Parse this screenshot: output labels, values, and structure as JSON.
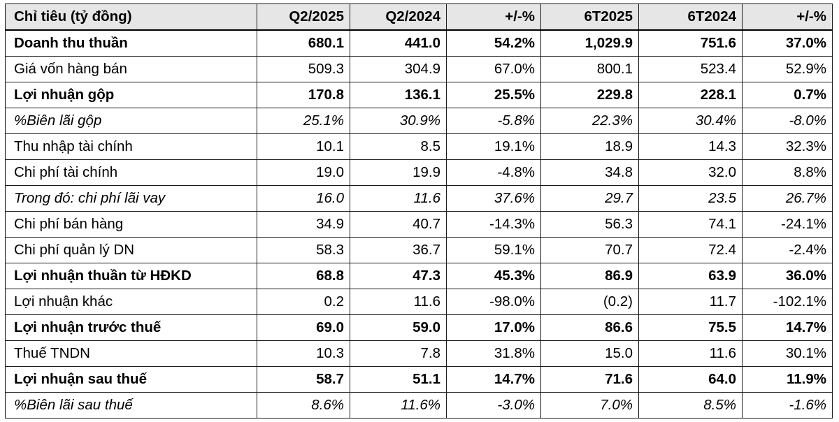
{
  "table": {
    "headers": [
      "Chỉ tiêu (tỷ đồng)",
      "Q2/2025",
      "Q2/2024",
      "+/-%",
      "6T2025",
      "6T2024",
      "+/-%"
    ],
    "rows": [
      {
        "style": "bold",
        "cells": [
          "Doanh thu thuần",
          "680.1",
          "441.0",
          "54.2%",
          "1,029.9",
          "751.6",
          "37.0%"
        ]
      },
      {
        "style": "normal",
        "cells": [
          "Giá vốn hàng bán",
          "509.3",
          "304.9",
          "67.0%",
          "800.1",
          "523.4",
          "52.9%"
        ]
      },
      {
        "style": "bold",
        "cells": [
          "Lợi nhuận gộp",
          "170.8",
          "136.1",
          "25.5%",
          "229.8",
          "228.1",
          "0.7%"
        ]
      },
      {
        "style": "italic",
        "cells": [
          "%Biên lãi gộp",
          "25.1%",
          "30.9%",
          "-5.8%",
          "22.3%",
          "30.4%",
          "-8.0%"
        ]
      },
      {
        "style": "normal",
        "cells": [
          "Thu nhập tài chính",
          "10.1",
          "8.5",
          "19.1%",
          "18.9",
          "14.3",
          "32.3%"
        ]
      },
      {
        "style": "normal",
        "cells": [
          "Chi phí tài chính",
          "19.0",
          "19.9",
          "-4.8%",
          "34.8",
          "32.0",
          "8.8%"
        ]
      },
      {
        "style": "italic",
        "cells": [
          "Trong đó: chi phí lãi vay",
          "16.0",
          "11.6",
          "37.6%",
          "29.7",
          "23.5",
          "26.7%"
        ]
      },
      {
        "style": "normal",
        "cells": [
          "Chi phí bán hàng",
          "34.9",
          "40.7",
          "-14.3%",
          "56.3",
          "74.1",
          "-24.1%"
        ]
      },
      {
        "style": "normal",
        "cells": [
          "Chi phí quản lý DN",
          "58.3",
          "36.7",
          "59.1%",
          "70.7",
          "72.4",
          "-2.4%"
        ]
      },
      {
        "style": "bold",
        "cells": [
          "Lợi nhuận thuần từ HĐKD",
          "68.8",
          "47.3",
          "45.3%",
          "86.9",
          "63.9",
          "36.0%"
        ]
      },
      {
        "style": "normal",
        "cells": [
          "Lợi nhuận khác",
          "0.2",
          "11.6",
          "-98.0%",
          "(0.2)",
          "11.7",
          "-102.1%"
        ]
      },
      {
        "style": "bold",
        "cells": [
          "Lợi nhuận trước thuế",
          "69.0",
          "59.0",
          "17.0%",
          "86.6",
          "75.5",
          "14.7%"
        ]
      },
      {
        "style": "normal",
        "cells": [
          "Thuế TNDN",
          "10.3",
          "7.8",
          "31.8%",
          "15.0",
          "11.6",
          "30.1%"
        ]
      },
      {
        "style": "bold",
        "cells": [
          "Lợi nhuận sau thuế",
          "58.7",
          "51.1",
          "14.7%",
          "71.6",
          "64.0",
          "11.9%"
        ]
      },
      {
        "style": "italic",
        "cells": [
          "%Biên lãi sau thuế",
          "8.6%",
          "11.6%",
          "-3.0%",
          "7.0%",
          "8.5%",
          "-1.6%"
        ]
      }
    ]
  },
  "colors": {
    "header_bg": "#e6e6e6",
    "border": "#1a1a1a",
    "text": "#000000"
  }
}
